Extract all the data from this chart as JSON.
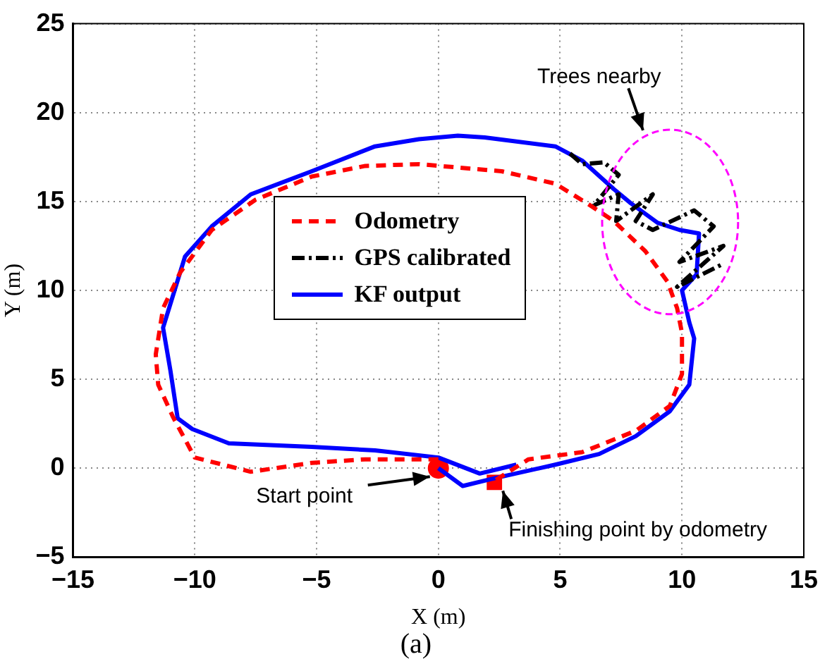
{
  "chart_data": {
    "type": "line",
    "xlabel": "X (m)",
    "ylabel": "Y (m)",
    "xlim": [
      -15,
      15
    ],
    "ylim": [
      -5,
      25
    ],
    "xticks": [
      -15,
      -10,
      -5,
      0,
      5,
      10,
      15
    ],
    "yticks": [
      -5,
      0,
      5,
      10,
      15,
      20,
      25
    ],
    "grid": true,
    "legend": "center",
    "marker": "none",
    "series": [
      {
        "name": "Odometry",
        "color": "#ff0000",
        "line_style": "dashed",
        "x": [
          0,
          -3.0,
          -5.2,
          -7.7,
          -10.0,
          -10.9,
          -11.5,
          -11.6,
          -11.3,
          -10.6,
          -9.3,
          -7.5,
          -5.2,
          -3.0,
          -0.8,
          2.6,
          4.8,
          6.1,
          7.2,
          8.5,
          9.4,
          9.8,
          10.0,
          10.0,
          9.5,
          8.1,
          5.9,
          3.7,
          2.2
        ],
        "values": [
          0.5,
          0.5,
          0.3,
          -0.2,
          0.6,
          2.9,
          4.7,
          6.4,
          9.0,
          11.0,
          13.4,
          15.1,
          16.4,
          17.0,
          17.1,
          16.7,
          16.0,
          14.9,
          13.9,
          12.2,
          10.5,
          9.0,
          7.6,
          5.3,
          3.5,
          2.1,
          0.9,
          0.5,
          -0.8
        ]
      },
      {
        "name": "GPS calibrated",
        "color": "#000000",
        "line_style": "dashdot",
        "x": [
          5.4,
          5.9,
          6.8,
          7.4,
          6.4,
          7.4,
          7.3,
          8.8,
          8.1,
          8.8,
          10.5,
          11.3,
          9.9,
          11.7,
          9.8,
          11.7
        ],
        "values": [
          17.7,
          17.1,
          17.2,
          16.5,
          14.8,
          15.4,
          13.9,
          15.4,
          13.9,
          13.4,
          14.5,
          13.6,
          11.6,
          12.5,
          10.2,
          11.5
        ]
      },
      {
        "name": "KF output",
        "color": "#0000ff",
        "line_style": "solid",
        "x": [
          0,
          1.0,
          2.2,
          4.8,
          6.6,
          8.1,
          9.5,
          10.3,
          10.5,
          10.3,
          10.0,
          10.6,
          10.7,
          9.9,
          9.0,
          7.9,
          7.2,
          5.9,
          4.8,
          1.9,
          0.8,
          -0.8,
          -2.6,
          -5.2,
          -7.7,
          -9.3,
          -10.4,
          -11.3,
          -11.0,
          -10.7,
          -10.1,
          -8.6,
          -5.2,
          -2.6,
          0,
          1.7,
          3.2
        ],
        "values": [
          0,
          -1.0,
          -0.6,
          0.2,
          0.8,
          1.8,
          3.2,
          4.7,
          7.3,
          8.2,
          10.0,
          10.9,
          13.2,
          13.4,
          13.8,
          14.9,
          15.7,
          17.3,
          18.1,
          18.6,
          18.7,
          18.5,
          18.1,
          16.7,
          15.4,
          13.6,
          11.9,
          7.9,
          5.5,
          2.8,
          2.2,
          1.4,
          1.2,
          1.0,
          0.6,
          -0.3,
          0.2
        ]
      },
      {
        "type": "scatter",
        "color": "#ff0000",
        "marker": "circle",
        "x": [
          0
        ],
        "values": [
          0
        ]
      },
      {
        "type": "scatter",
        "color": "#ff0000",
        "marker": "square",
        "x": [
          2.3
        ],
        "values": [
          -0.8
        ]
      }
    ],
    "annotations": [
      "Trees nearby",
      {
        "text": "Start point",
        "x": 0,
        "y": 0
      },
      {
        "text": "Finishing point by odometry",
        "x": 2.3,
        "y": -0.8
      },
      "(a)"
    ]
  }
}
